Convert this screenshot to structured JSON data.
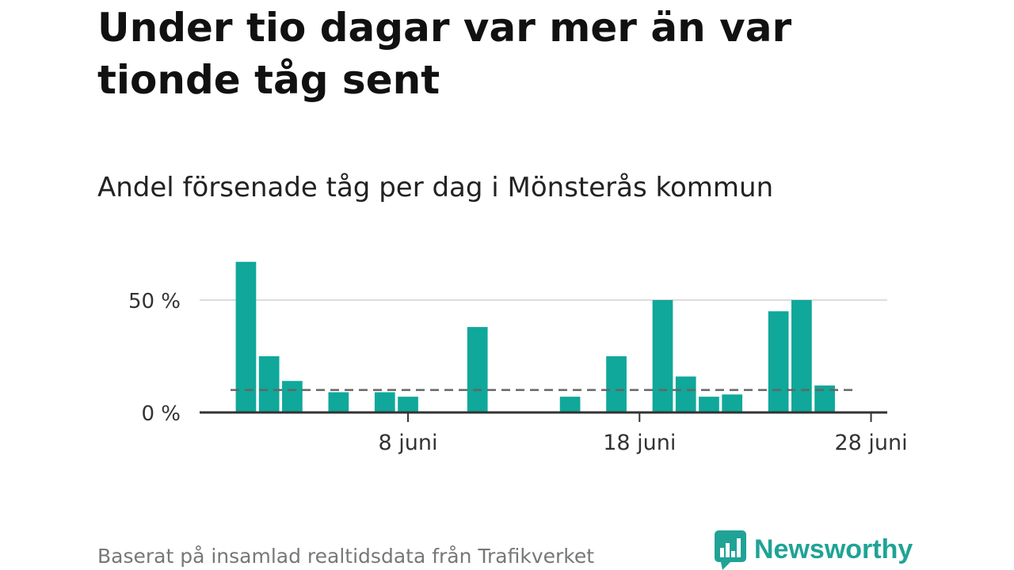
{
  "title": "Under tio dagar var mer än var tionde tåg sent",
  "subtitle": "Andel försenade tåg per dag i Mönsterås kommun",
  "source": "Baserat på insamlad realtidsdata från Trafikverket",
  "logo": {
    "text": "Newsworthy",
    "icon": "newsworthy-chart-icon",
    "color": "#1fa396"
  },
  "chart_data": {
    "type": "bar",
    "title": "Andel försenade tåg per dag i Mönsterås kommun",
    "x_unit": "day of June",
    "x": [
      1,
      2,
      3,
      5,
      7,
      8,
      11,
      15,
      17,
      19,
      20,
      21,
      22,
      24,
      25,
      26
    ],
    "values": [
      67,
      25,
      14,
      9,
      9,
      7,
      38,
      7,
      25,
      50,
      16,
      7,
      8,
      45,
      50,
      12
    ],
    "reference_line": {
      "value": 10,
      "style": "dashed"
    },
    "xlim": [
      -1,
      28.7
    ],
    "ylim": [
      0,
      75
    ],
    "y_ticks": [
      {
        "value": 0,
        "label": "0 %"
      },
      {
        "value": 50,
        "label": "50 %"
      }
    ],
    "x_ticks": [
      {
        "value": 8,
        "label": "8 juni"
      },
      {
        "value": 18,
        "label": "18 juni"
      },
      {
        "value": 28,
        "label": "28 juni"
      }
    ],
    "grid": true,
    "legend": "none",
    "colors": {
      "bar": "#0fa89a",
      "grid": "#dddddd",
      "axis": "#333333",
      "reference": "#666666"
    }
  }
}
